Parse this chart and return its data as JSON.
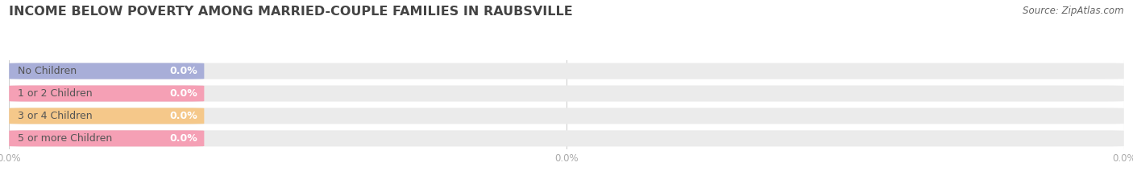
{
  "title": "INCOME BELOW POVERTY AMONG MARRIED-COUPLE FAMILIES IN RAUBSVILLE",
  "source": "Source: ZipAtlas.com",
  "categories": [
    "No Children",
    "1 or 2 Children",
    "3 or 4 Children",
    "5 or more Children"
  ],
  "values": [
    0.0,
    0.0,
    0.0,
    0.0
  ],
  "bar_colors": [
    "#a8aed8",
    "#f5a0b5",
    "#f5c88a",
    "#f5a0b5"
  ],
  "bar_bg_color": "#ebebeb",
  "background_color": "#ffffff",
  "title_fontsize": 11.5,
  "label_fontsize": 9,
  "value_fontsize": 9,
  "source_fontsize": 8.5,
  "tick_fontsize": 8.5,
  "tick_color": "#aaaaaa",
  "title_color": "#444444",
  "source_color": "#666666",
  "label_color": "#555555",
  "value_color": "#ffffff"
}
